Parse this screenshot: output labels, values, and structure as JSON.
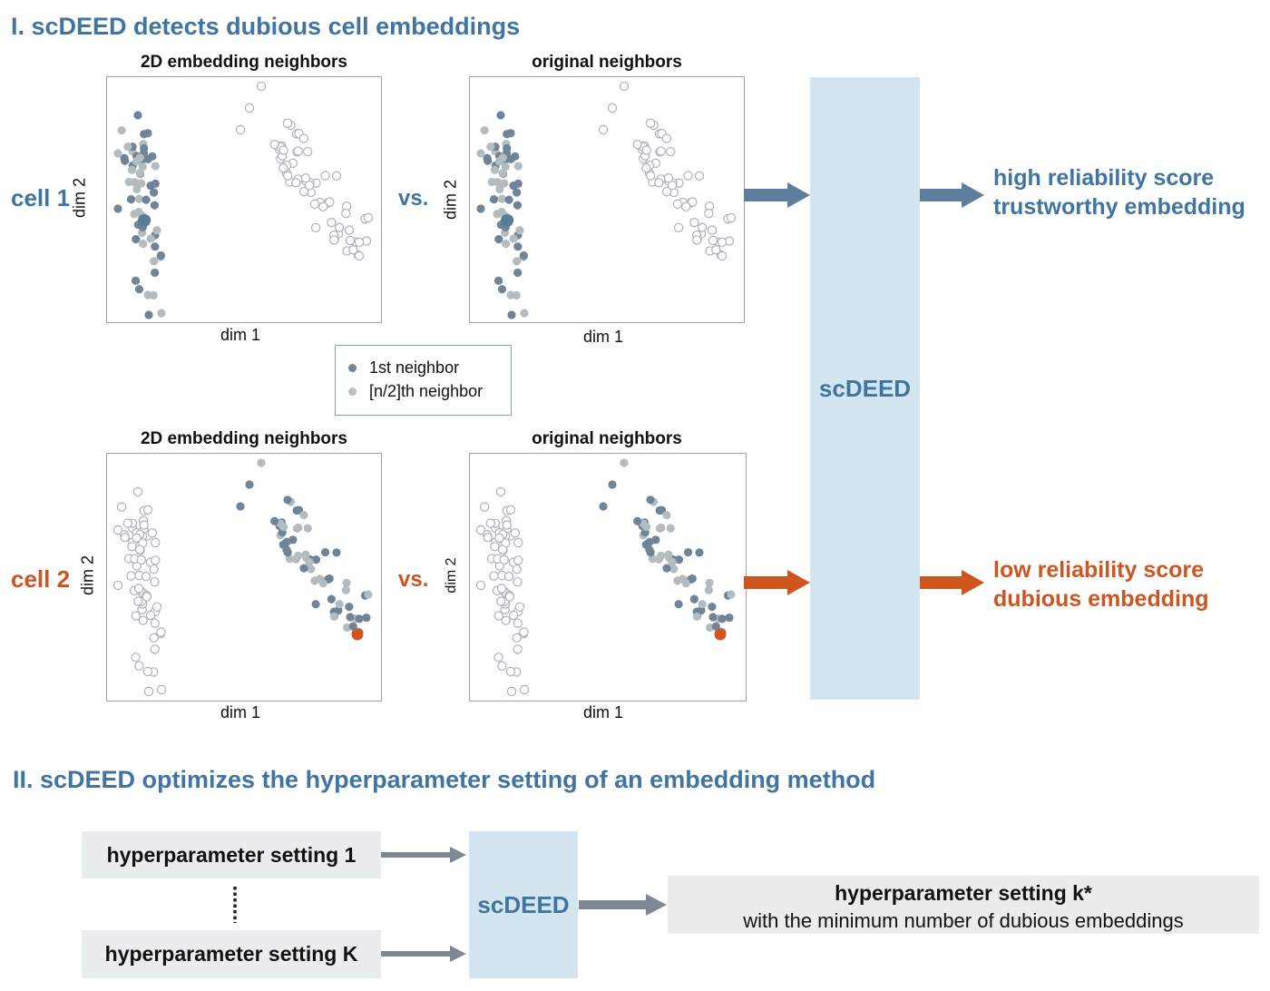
{
  "colors": {
    "blue": "#3f74a3",
    "orange": "#cc5520",
    "dark_point": "#6f8597",
    "light_point": "#b3bcc1",
    "panel": "#d3e6f0",
    "arrow_blue": "#5d7f9d",
    "arrow_gray": "#7d8893"
  },
  "section1": {
    "title": "I. scDEED detects dubious cell embeddings"
  },
  "section2": {
    "title": "II. scDEED optimizes the hyperparameter setting of an embedding method"
  },
  "plots": {
    "title_embedding": "2D embedding neighbors",
    "title_original": "original neighbors",
    "xlabel": "dim 1",
    "ylabel": "dim 2"
  },
  "rows": {
    "cell1": {
      "label": "cell 1",
      "vs": "vs.",
      "result_line1": "high reliability score",
      "result_line2": "trustworthy embedding"
    },
    "cell2": {
      "label": "cell 2",
      "vs": "vs.",
      "result_line1": "low reliability score",
      "result_line2": "dubious embedding"
    }
  },
  "legend": {
    "item1": "1st neighbor",
    "item2": "[n/2]th neighbor"
  },
  "scdeed": {
    "label": "scDEED"
  },
  "hyper": {
    "setting_1": "hyperparameter setting 1",
    "setting_K": "hyperparameter setting K",
    "result_title": "hyperparameter setting k*",
    "result_sub": "with the minimum number of dubious embeddings"
  },
  "icons": {
    "arrow": "right-arrow-icon",
    "ellipsis": "vertical-ellipsis-icon"
  }
}
